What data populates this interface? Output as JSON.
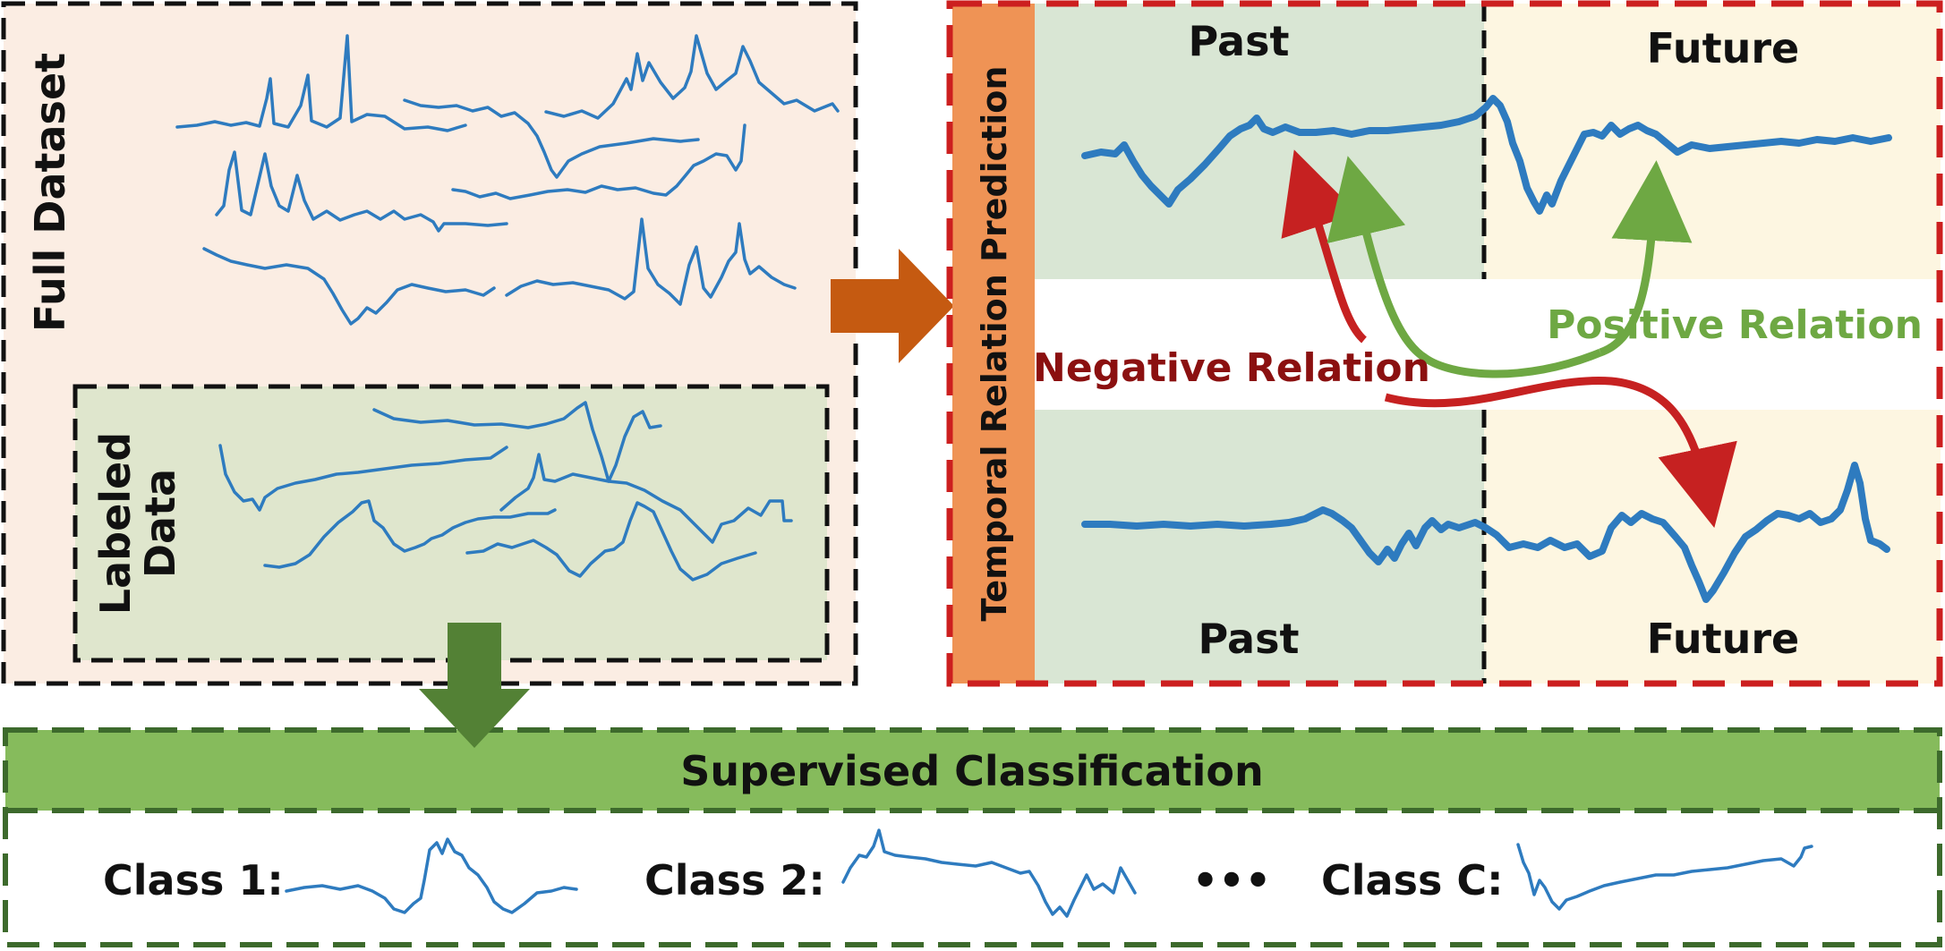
{
  "full_dataset": {
    "label": "Full Dataset"
  },
  "labeled_data": {
    "line1": "Labeled",
    "line2": "Data"
  },
  "trp": {
    "label": "Temporal Relation Prediction",
    "past_top": "Past",
    "future_top": "Future",
    "past_bottom": "Past",
    "future_bottom": "Future",
    "negative_relation": "Negative Relation",
    "positive_relation": "Positive Relation"
  },
  "classification": {
    "title": "Supervised Classification",
    "class1": "Class 1:",
    "class2": "Class 2:",
    "ellipsis": "•••",
    "classC": "Class C:"
  },
  "colors": {
    "full_dataset_bg": "#fbede3",
    "labeled_bg": "#dfe6cd",
    "past_bg": "#d9e6d4",
    "future_bg": "#fdf6e1",
    "trp_bar": "#ef9355",
    "red_dash": "#cc1f1f",
    "green_dash": "#3d6a2c",
    "cls_bar": "#86bb5c",
    "arrow_orange": "#c55a11",
    "arrow_green": "#538135",
    "negative_text": "#8b1010",
    "positive_text": "#6ea843",
    "wave": "#2e7bbf"
  },
  "icons": [
    "right-arrow-icon",
    "down-arrow-icon",
    "negative-relation-arrow-icon",
    "positive-relation-arrow-icon"
  ]
}
